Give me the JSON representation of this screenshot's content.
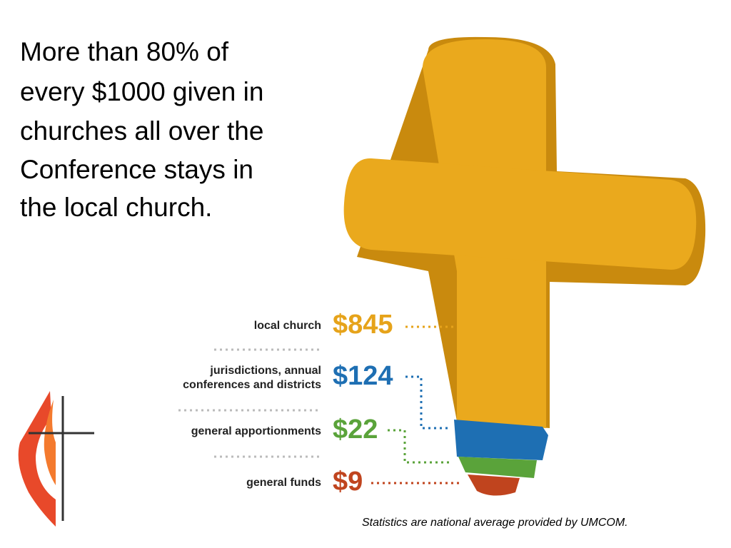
{
  "heading": {
    "lines": [
      "More than 80% of",
      "every $1000 given in",
      "churches all over the",
      "Conference stays in",
      "the local church."
    ]
  },
  "items": [
    {
      "label": [
        "local church"
      ],
      "amount": "$845"
    },
    {
      "label": [
        "jurisdictions, annual",
        "conferences and districts"
      ],
      "amount": "$124"
    },
    {
      "label": [
        "general apportionments"
      ],
      "amount": "$22"
    },
    {
      "label": [
        "general funds"
      ],
      "amount": "$9"
    }
  ],
  "footnote": "Statistics are national average provided by UMCOM."
}
